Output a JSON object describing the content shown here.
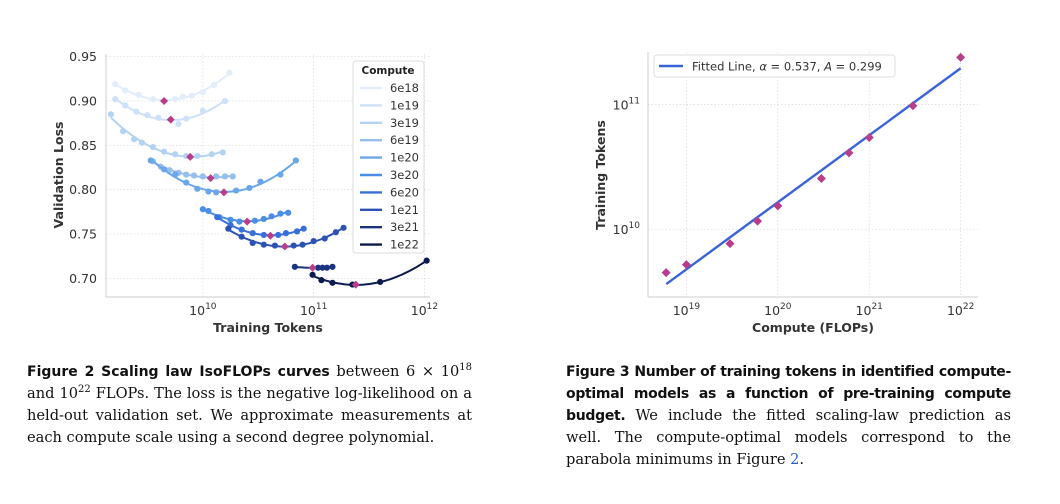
{
  "chart_data": [
    {
      "type": "line",
      "title": "",
      "xlabel": "Training Tokens",
      "ylabel": "Validation Loss",
      "xscale": "log",
      "x_units": "log10(tokens)",
      "xlim_log10": [
        9.126,
        12.05
      ],
      "ylim": [
        0.679,
        0.953
      ],
      "xticks": [
        {
          "base": "10",
          "exp": "10",
          "value_log10": 10
        },
        {
          "base": "10",
          "exp": "11",
          "value_log10": 11
        },
        {
          "base": "10",
          "exp": "12",
          "value_log10": 12
        }
      ],
      "yticks": [
        {
          "label": "0.95",
          "value": 0.95
        },
        {
          "label": "0.90",
          "value": 0.9
        },
        {
          "label": "0.85",
          "value": 0.85
        },
        {
          "label": "0.80",
          "value": 0.8
        },
        {
          "label": "0.75",
          "value": 0.75
        },
        {
          "label": "0.70",
          "value": 0.7
        }
      ],
      "grid": true,
      "legend": {
        "title": "Compute",
        "placement": "right"
      },
      "marker_color": "#b83d8b",
      "series": [
        {
          "name": "6e18",
          "color": "#e2edfb",
          "optimum": [
            9.65,
            0.9
          ],
          "points": [
            [
              9.21,
              0.919
            ],
            [
              9.3,
              0.912
            ],
            [
              9.42,
              0.907
            ],
            [
              9.55,
              0.902
            ],
            [
              9.75,
              0.902
            ],
            [
              9.82,
              0.905
            ],
            [
              9.9,
              0.906
            ],
            [
              10.0,
              0.91
            ],
            [
              10.1,
              0.918
            ],
            [
              10.24,
              0.932
            ]
          ]
        },
        {
          "name": "1e19",
          "color": "#cde1f8",
          "optimum": [
            9.71,
            0.879
          ],
          "points": [
            [
              9.21,
              0.902
            ],
            [
              9.3,
              0.895
            ],
            [
              9.4,
              0.888
            ],
            [
              9.5,
              0.884
            ],
            [
              9.6,
              0.881
            ],
            [
              9.78,
              0.874
            ],
            [
              9.85,
              0.88
            ],
            [
              10.0,
              0.889
            ],
            [
              10.2,
              0.9
            ]
          ]
        },
        {
          "name": "3e19",
          "color": "#b3d3f4",
          "optimum": [
            9.886,
            0.837
          ],
          "points": [
            [
              9.17,
              0.885
            ],
            [
              9.28,
              0.866
            ],
            [
              9.38,
              0.857
            ],
            [
              9.45,
              0.853
            ],
            [
              9.55,
              0.848
            ],
            [
              9.65,
              0.843
            ],
            [
              9.75,
              0.84
            ],
            [
              9.85,
              0.838
            ],
            [
              9.95,
              0.838
            ],
            [
              10.08,
              0.84
            ],
            [
              10.18,
              0.842
            ]
          ]
        },
        {
          "name": "6e19",
          "color": "#96bfee",
          "optimum": [
            10.07,
            0.813
          ],
          "points": [
            [
              9.55,
              0.832
            ],
            [
              9.62,
              0.826
            ],
            [
              9.7,
              0.822
            ],
            [
              9.78,
              0.819
            ],
            [
              9.85,
              0.817
            ],
            [
              9.92,
              0.816
            ],
            [
              10.0,
              0.815
            ],
            [
              10.12,
              0.815
            ],
            [
              10.2,
              0.815
            ],
            [
              10.27,
              0.815
            ]
          ]
        },
        {
          "name": "1e20",
          "color": "#6aa7ea",
          "optimum": [
            10.19,
            0.797
          ],
          "points": [
            [
              9.53,
              0.833
            ],
            [
              9.65,
              0.823
            ],
            [
              9.75,
              0.817
            ],
            [
              9.85,
              0.808
            ],
            [
              9.95,
              0.801
            ],
            [
              10.05,
              0.798
            ],
            [
              10.12,
              0.797
            ],
            [
              10.3,
              0.799
            ],
            [
              10.42,
              0.802
            ],
            [
              10.52,
              0.809
            ],
            [
              10.7,
              0.817
            ],
            [
              10.84,
              0.833
            ]
          ]
        },
        {
          "name": "3e20",
          "color": "#4a8ee6",
          "optimum": [
            10.4,
            0.764
          ],
          "points": [
            [
              10.0,
              0.778
            ],
            [
              10.05,
              0.776
            ],
            [
              10.15,
              0.769
            ],
            [
              10.25,
              0.766
            ],
            [
              10.33,
              0.764
            ],
            [
              10.47,
              0.765
            ],
            [
              10.55,
              0.767
            ],
            [
              10.62,
              0.77
            ],
            [
              10.7,
              0.773
            ],
            [
              10.77,
              0.774
            ]
          ]
        },
        {
          "name": "6e20",
          "color": "#3870db",
          "optimum": [
            10.61,
            0.748
          ],
          "points": [
            [
              10.13,
              0.769
            ],
            [
              10.25,
              0.76
            ],
            [
              10.35,
              0.755
            ],
            [
              10.45,
              0.751
            ],
            [
              10.55,
              0.749
            ],
            [
              10.68,
              0.749
            ],
            [
              10.75,
              0.751
            ],
            [
              10.85,
              0.753
            ],
            [
              10.91,
              0.756
            ]
          ]
        },
        {
          "name": "1e21",
          "color": "#2b52b4",
          "optimum": [
            10.74,
            0.736
          ],
          "points": [
            [
              10.23,
              0.756
            ],
            [
              10.35,
              0.747
            ],
            [
              10.45,
              0.74
            ],
            [
              10.55,
              0.738
            ],
            [
              10.65,
              0.737
            ],
            [
              10.82,
              0.737
            ],
            [
              10.9,
              0.738
            ],
            [
              11.0,
              0.742
            ],
            [
              11.1,
              0.745
            ],
            [
              11.2,
              0.752
            ],
            [
              11.27,
              0.757
            ]
          ]
        },
        {
          "name": "3e21",
          "color": "#1b3380",
          "optimum": [
            10.99,
            0.712
          ],
          "points": [
            [
              10.83,
              0.713
            ],
            [
              11.04,
              0.712
            ],
            [
              11.08,
              0.712
            ],
            [
              11.12,
              0.712
            ],
            [
              11.17,
              0.713
            ]
          ]
        },
        {
          "name": "1e22",
          "color": "#0b1a4f",
          "optimum": [
            11.38,
            0.693
          ],
          "points": [
            [
              10.99,
              0.704
            ],
            [
              11.07,
              0.698
            ],
            [
              11.17,
              0.695
            ],
            [
              11.35,
              0.693
            ],
            [
              11.6,
              0.696
            ],
            [
              12.02,
              0.72
            ]
          ]
        }
      ]
    },
    {
      "type": "scatter",
      "title": "",
      "xlabel": "Compute (FLOPs)",
      "ylabel": "Training Tokens",
      "xscale": "log",
      "yscale": "log",
      "xlim_log10": [
        18.58,
        22.19
      ],
      "ylim_log10": [
        9.457,
        11.42
      ],
      "xticks": [
        {
          "base": "10",
          "exp": "19",
          "value_log10": 19
        },
        {
          "base": "10",
          "exp": "20",
          "value_log10": 20
        },
        {
          "base": "10",
          "exp": "21",
          "value_log10": 21
        },
        {
          "base": "10",
          "exp": "22",
          "value_log10": 22
        }
      ],
      "yticks": [
        {
          "base": "10",
          "exp": "10",
          "value_log10": 10
        },
        {
          "base": "10",
          "exp": "11",
          "value_log10": 11
        }
      ],
      "grid": true,
      "legend": {
        "placement": "top-left",
        "parts": [
          "Fitted Line, ",
          "α",
          " = 0.537, ",
          "A",
          " = 0.299"
        ]
      },
      "fit": {
        "alpha": 0.537,
        "A": 0.299,
        "color": "#3a63d8",
        "x_from_log10": 18.78,
        "x_to_log10": 22.0
      },
      "marker_color": "#b83d8b",
      "points": [
        {
          "compute": 6e+18,
          "tokens": 4490000000.0
        },
        {
          "compute": 1e+19,
          "tokens": 5210000000.0
        },
        {
          "compute": 3e+19,
          "tokens": 7670000000.0
        },
        {
          "compute": 6e+19,
          "tokens": 11600000000.0
        },
        {
          "compute": 1e+20,
          "tokens": 15400000000.0
        },
        {
          "compute": 3e+20,
          "tokens": 25500000000.0
        },
        {
          "compute": 6e+20,
          "tokens": 40900000000.0
        },
        {
          "compute": 1e+21,
          "tokens": 54300000000.0
        },
        {
          "compute": 3e+21,
          "tokens": 97500000000.0
        },
        {
          "compute": 1e+22,
          "tokens": 238000000000.0
        }
      ]
    }
  ],
  "captions": {
    "fig2": {
      "title": "Figure 2  Scaling law IsoFLOPs curves",
      "t1": " between 6 × 10",
      "s1": "18",
      "t2": " and 10",
      "s2": "22",
      "t3": " FLOPs.  The loss is the negative log-likelihood on a held-out validation set. We approximate measurements at each compute scale using a second degree polynomial."
    },
    "fig3": {
      "title": "Figure 3  Number of training tokens in identified compute-optimal models as a function of pre-training compute budget.",
      "t1": " We include the fitted scaling-law prediction as well. The compute-optimal models correspond to the parabola minimums in Figure ",
      "ref": "2",
      "t2": "."
    }
  }
}
